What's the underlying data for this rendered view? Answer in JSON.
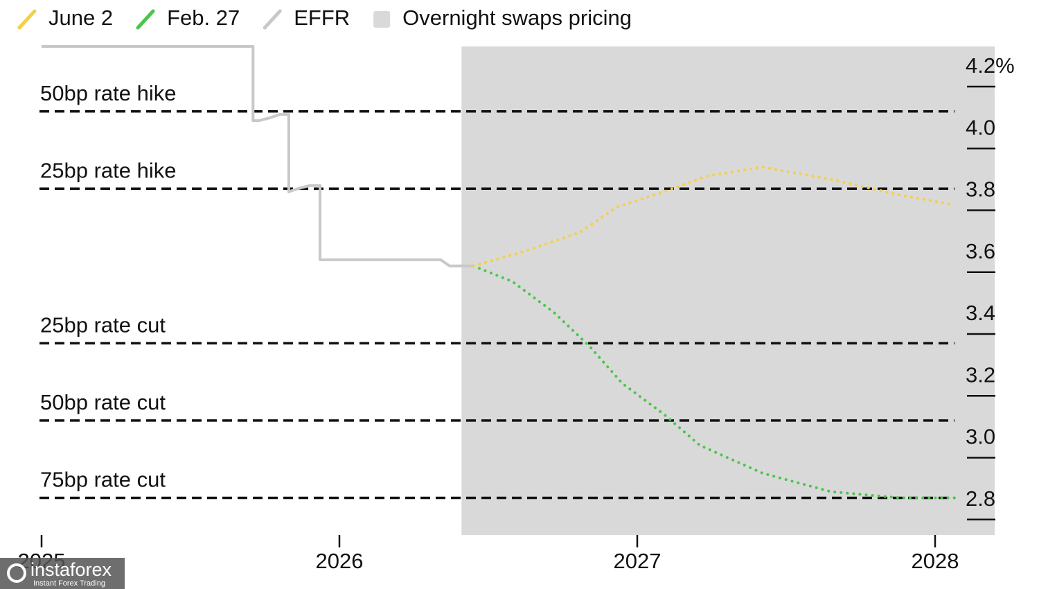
{
  "chart_data": {
    "type": "line",
    "xlim": [
      2025,
      2028.2
    ],
    "xticks": [
      2025,
      2026,
      2027,
      2028
    ],
    "ylim": [
      2.75,
      4.33
    ],
    "yticks": [
      {
        "value": 4.2,
        "label": "4.2%"
      },
      {
        "value": 4,
        "label": "4.0"
      },
      3.8,
      3.6,
      3.4,
      3.2,
      {
        "value": 3,
        "label": "3.0"
      },
      2.8
    ],
    "shade": [
      2026.41,
      2028.2
    ],
    "shade_label": "Overnight swaps pricing",
    "shade_color": "#d9d9d9",
    "reference_lines": [
      {
        "label": "50bp rate hike",
        "value": 4.12
      },
      {
        "label": "25bp rate hike",
        "value": 3.87
      },
      {
        "label": "25bp rate cut",
        "value": 3.37
      },
      {
        "label": "50bp rate cut",
        "value": 3.12
      },
      {
        "label": "75bp rate cut",
        "value": 2.87
      }
    ],
    "series": [
      {
        "name": "June 2",
        "color": "#f5cf47",
        "style": "dotted",
        "x": [
          2026.45,
          2026.63,
          2026.81,
          2026.93,
          2027.09,
          2027.23,
          2027.42,
          2027.65,
          2027.88,
          2028.05
        ],
        "values": [
          3.62,
          3.67,
          3.73,
          3.81,
          3.86,
          3.91,
          3.94,
          3.9,
          3.85,
          3.82
        ]
      },
      {
        "name": "Feb. 27",
        "color": "#4cc44c",
        "style": "dotted",
        "x": [
          2026.45,
          2026.58,
          2026.72,
          2026.84,
          2026.95,
          2027.09,
          2027.21,
          2027.42,
          2027.65,
          2027.88,
          2028.07
        ],
        "values": [
          3.62,
          3.57,
          3.47,
          3.36,
          3.24,
          3.14,
          3.04,
          2.95,
          2.89,
          2.87,
          2.87
        ]
      },
      {
        "name": "EFFR",
        "color": "#c8c8c8",
        "style": "solid",
        "x": [
          2025,
          2025.71,
          2025.71,
          2025.73,
          2025.77,
          2025.8,
          2025.83,
          2025.83,
          2025.86,
          2025.9,
          2025.935,
          2025.935,
          2026.34,
          2026.37,
          2026.45
        ],
        "values": [
          4.33,
          4.33,
          4.09,
          4.09,
          4.1,
          4.11,
          4.11,
          3.86,
          3.87,
          3.88,
          3.88,
          3.64,
          3.64,
          3.62,
          3.62
        ]
      }
    ]
  },
  "watermark": {
    "name": "instaforex",
    "tagline": "Instant Forex Trading"
  }
}
